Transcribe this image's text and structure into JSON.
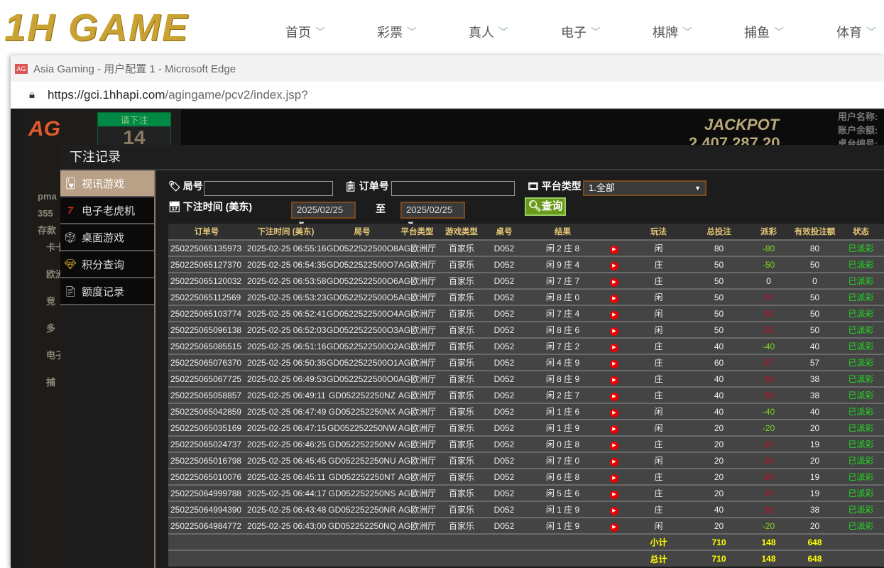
{
  "site": {
    "logo": "1H GAME",
    "nav": [
      "首页",
      "彩票",
      "真人",
      "电子",
      "棋牌",
      "捕鱼",
      "体育"
    ]
  },
  "browser": {
    "title": "Asia Gaming - 用户配置 1 - Microsoft Edge",
    "url_host": "https://gci.1hhapi.com",
    "url_path": "/agingame/pcv2/index.jsp?"
  },
  "game": {
    "bet_prompt": "请下注",
    "countdown": "14",
    "jackpot_label": "JACKPOT",
    "jackpot_value": "2,407,287.20",
    "user_labels": [
      "用户名称:",
      "账户余额:",
      "桌台编号:"
    ],
    "side_ghost": [
      "pma",
      "355",
      "存款",
      "卡卡",
      "欧洲",
      "竞",
      "多",
      "电子",
      "捕"
    ]
  },
  "dialog": {
    "title": "下注记录",
    "menu": [
      {
        "label": "视讯游戏",
        "icon": "cards-icon",
        "active": true
      },
      {
        "label": "电子老虎机",
        "icon": "slot-777-icon"
      },
      {
        "label": "桌面游戏",
        "icon": "dice-icon"
      },
      {
        "label": "积分查询",
        "icon": "diamond-icon"
      },
      {
        "label": "额度记录",
        "icon": "document-icon"
      }
    ],
    "filters": {
      "round_label": "局号",
      "round_value": "",
      "order_label": "订单号",
      "order_value": "",
      "platform_label": "平台类型",
      "platform_value": "1.全部",
      "time_label": "下注时间 (美东)",
      "date_from": "2025/02/25",
      "to_label": "至",
      "date_to": "2025/02/25",
      "query_label": "查询"
    },
    "colors": {
      "negative": "#7ed321",
      "positive": "#c0102a",
      "zero": "#ffffff",
      "status": "#22dd22",
      "header": "#e8c777",
      "total": "#ffff00"
    },
    "columns": [
      "订单号",
      "下注时间 (美东)",
      "局号",
      "平台类型",
      "游戏类型",
      "桌号",
      "结果",
      "",
      "玩法",
      "总投注",
      "派彩",
      "有效投注额",
      "状态"
    ],
    "rows": [
      [
        "250225065135973",
        "2025-02-25 06:55:16",
        "GD0522522500O8",
        "AG欧洲厅",
        "百家乐",
        "D052",
        "闲 2 庄 8",
        "闲",
        "80",
        "-80",
        "80",
        "已派彩"
      ],
      [
        "250225065127370",
        "2025-02-25 06:54:35",
        "GD0522522500O7",
        "AG欧洲厅",
        "百家乐",
        "D052",
        "闲 9 庄 4",
        "庄",
        "50",
        "-50",
        "50",
        "已派彩"
      ],
      [
        "250225065120032",
        "2025-02-25 06:53:58",
        "GD0522522500O6",
        "AG欧洲厅",
        "百家乐",
        "D052",
        "闲 7 庄 7",
        "庄",
        "50",
        "0",
        "0",
        "已派彩"
      ],
      [
        "250225065112569",
        "2025-02-25 06:53:23",
        "GD0522522500O5",
        "AG欧洲厅",
        "百家乐",
        "D052",
        "闲 8 庄 0",
        "闲",
        "50",
        "50",
        "50",
        "已派彩"
      ],
      [
        "250225065103774",
        "2025-02-25 06:52:41",
        "GD0522522500O4",
        "AG欧洲厅",
        "百家乐",
        "D052",
        "闲 7 庄 4",
        "闲",
        "50",
        "50",
        "50",
        "已派彩"
      ],
      [
        "250225065096138",
        "2025-02-25 06:52:03",
        "GD0522522500O3",
        "AG欧洲厅",
        "百家乐",
        "D052",
        "闲 8 庄 6",
        "闲",
        "50",
        "50",
        "50",
        "已派彩"
      ],
      [
        "250225065085515",
        "2025-02-25 06:51:16",
        "GD0522522500O2",
        "AG欧洲厅",
        "百家乐",
        "D052",
        "闲 7 庄 2",
        "庄",
        "40",
        "-40",
        "40",
        "已派彩"
      ],
      [
        "250225065076370",
        "2025-02-25 06:50:35",
        "GD0522522500O1",
        "AG欧洲厅",
        "百家乐",
        "D052",
        "闲 4 庄 9",
        "庄",
        "60",
        "57",
        "57",
        "已派彩"
      ],
      [
        "250225065067725",
        "2025-02-25 06:49:53",
        "GD0522522500O0",
        "AG欧洲厅",
        "百家乐",
        "D052",
        "闲 8 庄 9",
        "庄",
        "40",
        "38",
        "38",
        "已派彩"
      ],
      [
        "250225065058857",
        "2025-02-25 06:49:11",
        "GD052252250NZ",
        "AG欧洲厅",
        "百家乐",
        "D052",
        "闲 2 庄 7",
        "庄",
        "40",
        "38",
        "38",
        "已派彩"
      ],
      [
        "250225065042859",
        "2025-02-25 06:47:49",
        "GD052252250NX",
        "AG欧洲厅",
        "百家乐",
        "D052",
        "闲 1 庄 6",
        "闲",
        "40",
        "-40",
        "40",
        "已派彩"
      ],
      [
        "250225065035169",
        "2025-02-25 06:47:15",
        "GD052252250NW",
        "AG欧洲厅",
        "百家乐",
        "D052",
        "闲 1 庄 9",
        "闲",
        "20",
        "-20",
        "20",
        "已派彩"
      ],
      [
        "250225065024737",
        "2025-02-25 06:46:25",
        "GD052252250NV",
        "AG欧洲厅",
        "百家乐",
        "D052",
        "闲 0 庄 8",
        "庄",
        "20",
        "19",
        "19",
        "已派彩"
      ],
      [
        "250225065016798",
        "2025-02-25 06:45:45",
        "GD052252250NU",
        "AG欧洲厅",
        "百家乐",
        "D052",
        "闲 7 庄 0",
        "闲",
        "20",
        "20",
        "20",
        "已派彩"
      ],
      [
        "250225065010076",
        "2025-02-25 06:45:11",
        "GD052252250NT",
        "AG欧洲厅",
        "百家乐",
        "D052",
        "闲 6 庄 8",
        "庄",
        "20",
        "19",
        "19",
        "已派彩"
      ],
      [
        "250225064999788",
        "2025-02-25 06:44:17",
        "GD052252250NS",
        "AG欧洲厅",
        "百家乐",
        "D052",
        "闲 5 庄 6",
        "庄",
        "20",
        "19",
        "19",
        "已派彩"
      ],
      [
        "250225064994390",
        "2025-02-25 06:43:48",
        "GD052252250NR",
        "AG欧洲厅",
        "百家乐",
        "D052",
        "闲 1 庄 9",
        "庄",
        "40",
        "38",
        "38",
        "已派彩"
      ],
      [
        "250225064984772",
        "2025-02-25 06:43:00",
        "GD052252250NQ",
        "AG欧洲厅",
        "百家乐",
        "D052",
        "闲 1 庄 9",
        "闲",
        "20",
        "-20",
        "20",
        "已派彩"
      ]
    ],
    "subtotal": {
      "label": "小计",
      "total_bet": "710",
      "payout": "148",
      "valid_bet": "648"
    },
    "total": {
      "label": "总计",
      "total_bet": "710",
      "payout": "148",
      "valid_bet": "648"
    }
  }
}
